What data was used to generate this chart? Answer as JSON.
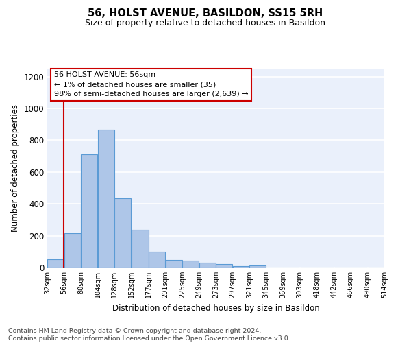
{
  "title": "56, HOLST AVENUE, BASILDON, SS15 5RH",
  "subtitle": "Size of property relative to detached houses in Basildon",
  "xlabel": "Distribution of detached houses by size in Basildon",
  "ylabel": "Number of detached properties",
  "bar_edges": [
    32,
    56,
    80,
    104,
    128,
    152,
    177,
    201,
    225,
    249,
    273,
    297,
    321,
    345,
    369,
    393,
    418,
    442,
    466,
    490,
    514
  ],
  "bar_heights": [
    50,
    215,
    710,
    865,
    435,
    235,
    100,
    48,
    45,
    30,
    20,
    10,
    12,
    0,
    0,
    0,
    0,
    0,
    0,
    0
  ],
  "bar_color": "#aec6e8",
  "bar_edge_color": "#5b9bd5",
  "bg_color": "#eaf0fb",
  "grid_color": "#ffffff",
  "fig_bg_color": "#ffffff",
  "vline_x": 56,
  "vline_color": "#cc0000",
  "annotation_box_text": "56 HOLST AVENUE: 56sqm\n← 1% of detached houses are smaller (35)\n98% of semi-detached houses are larger (2,639) →",
  "annotation_box_color": "#ffffff",
  "annotation_box_edge_color": "#cc0000",
  "ylim": [
    0,
    1250
  ],
  "yticks": [
    0,
    200,
    400,
    600,
    800,
    1000,
    1200
  ],
  "tick_labels": [
    "32sqm",
    "56sqm",
    "80sqm",
    "104sqm",
    "128sqm",
    "152sqm",
    "177sqm",
    "201sqm",
    "225sqm",
    "249sqm",
    "273sqm",
    "297sqm",
    "321sqm",
    "345sqm",
    "369sqm",
    "393sqm",
    "418sqm",
    "442sqm",
    "466sqm",
    "490sqm",
    "514sqm"
  ],
  "footnote": "Contains HM Land Registry data © Crown copyright and database right 2024.\nContains public sector information licensed under the Open Government Licence v3.0.",
  "title_fontsize": 10.5,
  "subtitle_fontsize": 9,
  "annotation_fontsize": 8,
  "footnote_fontsize": 6.8,
  "ylabel_fontsize": 8.5,
  "xlabel_fontsize": 8.5
}
